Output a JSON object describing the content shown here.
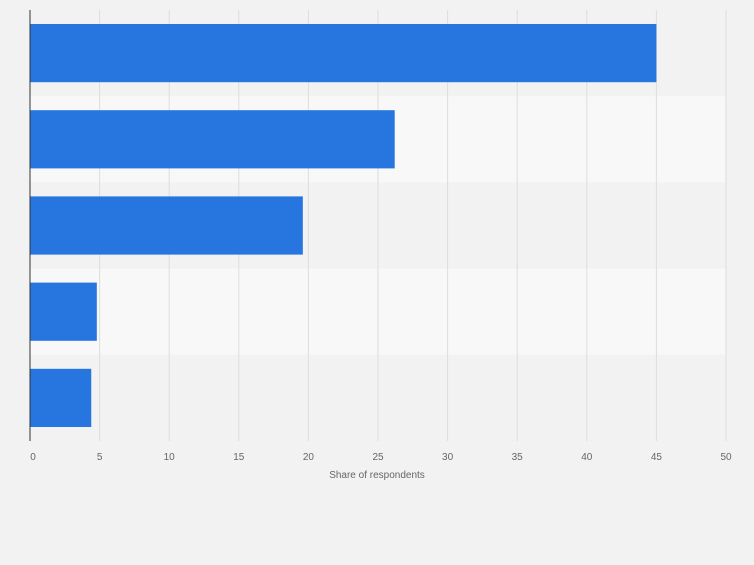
{
  "chart_data": {
    "type": "bar",
    "orientation": "horizontal",
    "categories": [
      "",
      "",
      "",
      "",
      ""
    ],
    "values": [
      45,
      26.2,
      19.6,
      4.8,
      4.4
    ],
    "title": "",
    "xlabel": "Share of respondents",
    "ylabel": "",
    "xlim": [
      0,
      50
    ],
    "xticks": [
      0,
      5,
      10,
      15,
      20,
      25,
      30,
      35,
      40,
      45,
      50
    ],
    "grid": true,
    "legend": "none",
    "colors": {
      "bar": "#2775de",
      "background": "#f2f2f2",
      "band_light": "#f8f8f8",
      "band_dark": "#f2f2f2",
      "grid": "#dddddd",
      "axis": "#333333",
      "tick_text": "#666666"
    }
  }
}
